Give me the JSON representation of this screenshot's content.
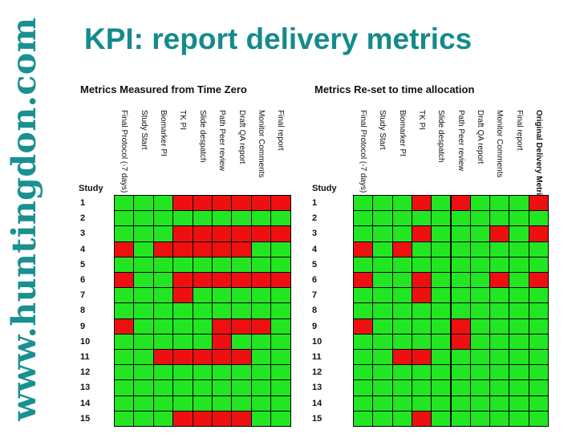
{
  "watermark": "www.huntingdon.com",
  "title": "KPI: report delivery metrics",
  "colors": {
    "green": "#22e622",
    "red": "#ee1010",
    "title": "#168a8a",
    "grid_line": "#000000"
  },
  "panels": [
    {
      "title": "Metrics Measured from Time Zero",
      "study_header": "Study",
      "columns": [
        "Final Protocol (-7 days)",
        "Study Start",
        "Biomarker PI",
        "TK PI",
        "Slide despatch",
        "Path Peer review",
        "Draft QA report",
        "Monitor Comments",
        "Final report"
      ],
      "rows": [
        {
          "study": "1",
          "cells": "GGGRRRRRR"
        },
        {
          "study": "2",
          "cells": "GGGGGGGGG"
        },
        {
          "study": "3",
          "cells": "GGGRRRRRR"
        },
        {
          "study": "4",
          "cells": "RGRRRRRGG"
        },
        {
          "study": "5",
          "cells": "GGGGGGGGG"
        },
        {
          "study": "6",
          "cells": "RGGRRRRRR"
        },
        {
          "study": "7",
          "cells": "GGGRGGGGG"
        },
        {
          "study": "8",
          "cells": "GGGGGGGGG"
        },
        {
          "study": "9",
          "cells": "RGGGGRRRG"
        },
        {
          "study": "10",
          "cells": "GGGGGRGGG"
        },
        {
          "study": "11",
          "cells": "GGRRRRRGG"
        },
        {
          "study": "12",
          "cells": "GGGGGGGGG"
        },
        {
          "study": "13",
          "cells": "GGGGGGGGG"
        },
        {
          "study": "14",
          "cells": "GGGGGGGGG"
        },
        {
          "study": "15",
          "cells": "GGGRRRRGG"
        }
      ]
    },
    {
      "title": "Metrics Re-set to time allocation",
      "study_header": "Study",
      "columns": [
        "Final Protocol (-7 days)",
        "Study Start",
        "Biomarker PI",
        "TK PI",
        "Slide despatch",
        "Path Peer review",
        "Draft QA report",
        "Monitor Comments",
        "Final report",
        "Original Delivery Metric"
      ],
      "rows": [
        {
          "study": "1",
          "cells": "GGGRGRGGGR"
        },
        {
          "study": "2",
          "cells": "GGGGGGGGGG"
        },
        {
          "study": "3",
          "cells": "GGGRGGGRGR"
        },
        {
          "study": "4",
          "cells": "RGRGGGGGGG"
        },
        {
          "study": "5",
          "cells": "GGGGGGGGGG"
        },
        {
          "study": "6",
          "cells": "RGGRGGGRGR"
        },
        {
          "study": "7",
          "cells": "GGGRGGGGGG"
        },
        {
          "study": "8",
          "cells": "GGGGGGGGGG"
        },
        {
          "study": "9",
          "cells": "RGGGGRGGGG"
        },
        {
          "study": "10",
          "cells": "GGGGGRGGGG"
        },
        {
          "study": "11",
          "cells": "GGRRGGGGGG"
        },
        {
          "study": "12",
          "cells": "GGGGGGGGGG"
        },
        {
          "study": "13",
          "cells": "GGGGGGGGGG"
        },
        {
          "study": "14",
          "cells": "GGGGGGGGGG"
        },
        {
          "study": "15",
          "cells": "GGGRGGGGGG"
        }
      ]
    }
  ]
}
